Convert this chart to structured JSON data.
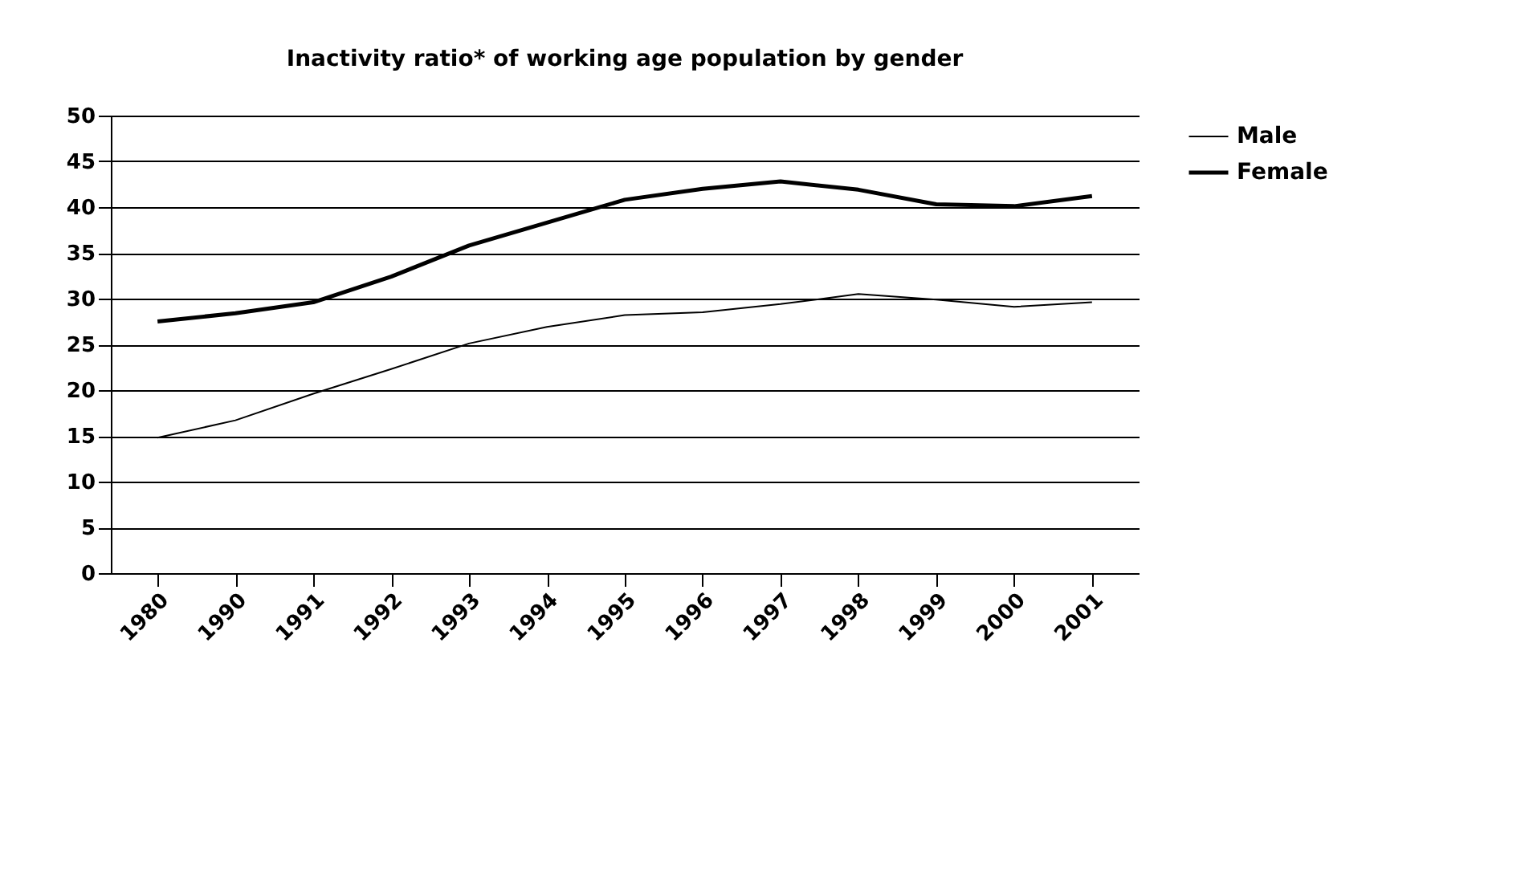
{
  "chart_data": {
    "type": "line",
    "title": "Inactivity ratio* of working age population by gender",
    "categories": [
      "1980",
      "1990",
      "1991",
      "1992",
      "1993",
      "1994",
      "1995",
      "1996",
      "1997",
      "1998",
      "1999",
      "2000",
      "2001"
    ],
    "ylim": [
      0,
      50
    ],
    "yticks": [
      0,
      5,
      10,
      15,
      20,
      25,
      30,
      35,
      40,
      45,
      50
    ],
    "grid": "y",
    "legend": "right",
    "marker": "none",
    "series": [
      {
        "name": "Male",
        "color": "#000000",
        "values": [
          14.8,
          16.7,
          19.6,
          22.3,
          25.1,
          26.9,
          28.2,
          28.5,
          29.4,
          30.5,
          29.9,
          29.1,
          29.6
        ]
      },
      {
        "name": "Female",
        "color": "#000000",
        "values": [
          27.5,
          28.4,
          29.6,
          32.4,
          35.8,
          38.3,
          40.8,
          42.0,
          42.8,
          41.9,
          40.3,
          40.1,
          41.2
        ]
      }
    ]
  }
}
